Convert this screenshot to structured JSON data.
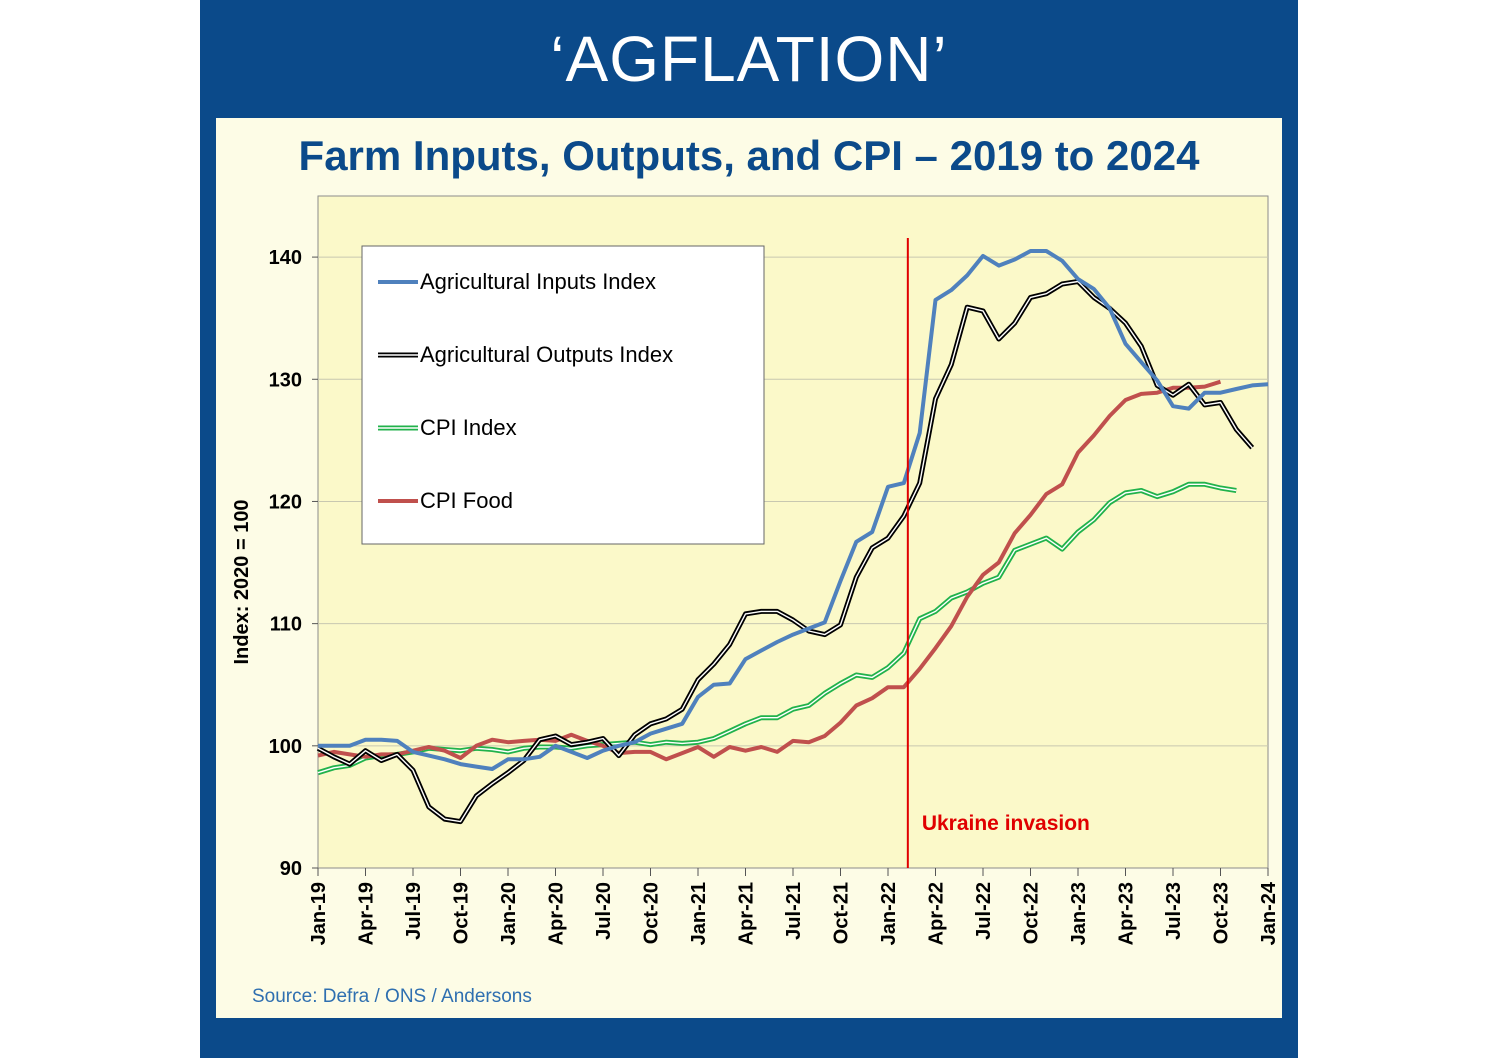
{
  "header": {
    "title": "‘AGFLATION’"
  },
  "subtitle": "Farm Inputs, Outputs, and CPI – 2019 to 2024",
  "source": "Source: Defra / ONS / Andersons",
  "colors": {
    "frame": "#0b4a8a",
    "panel": "#fdfce6",
    "plot_area": "#fbf9c9",
    "inputs": "#4f81bd",
    "outputs": "#000000",
    "cpi": "#21b24b",
    "cpi_food": "#c0504d",
    "invasion": "#e00000"
  },
  "chart_data": {
    "type": "line",
    "ylabel": "Index: 2020 = 100",
    "xlabel": "",
    "ylim": [
      90,
      145
    ],
    "yticks": [
      90,
      100,
      110,
      120,
      130,
      140
    ],
    "xlim": [
      "2019-01",
      "2024-01"
    ],
    "xticks": [
      "Jan-19",
      "Apr-19",
      "Jul-19",
      "Oct-19",
      "Jan-20",
      "Apr-20",
      "Jul-20",
      "Oct-20",
      "Jan-21",
      "Apr-21",
      "Jul-21",
      "Oct-21",
      "Jan-22",
      "Apr-22",
      "Jul-22",
      "Oct-22",
      "Jan-23",
      "Apr-23",
      "Jul-23",
      "Oct-23",
      "Jan-24"
    ],
    "grid": "horizontal",
    "legend_position": "top-left",
    "start_month": "2019-01",
    "series": [
      {
        "name": "Agricultural Inputs Index",
        "color": "#4f81bd",
        "values": [
          100.0,
          100.0,
          100.0,
          100.5,
          100.5,
          100.4,
          99.5,
          99.2,
          98.9,
          98.5,
          98.3,
          98.1,
          98.9,
          98.9,
          99.1,
          100.0,
          99.5,
          99.0,
          99.6,
          100.0,
          100.3,
          101.0,
          101.4,
          101.8,
          104.0,
          105.0,
          105.1,
          107.1,
          107.8,
          108.5,
          109.1,
          109.6,
          110.1,
          113.5,
          116.7,
          117.5,
          121.2,
          121.5,
          125.6,
          136.5,
          137.3,
          138.5,
          140.1,
          139.3,
          139.8,
          140.5,
          140.5,
          139.7,
          138.2,
          137.4,
          135.8,
          132.9,
          131.4,
          129.9,
          127.8,
          127.6,
          128.9,
          128.9,
          129.2,
          129.5,
          129.6
        ]
      },
      {
        "name": "Agricultural Outputs Index",
        "color": "#000000",
        "values": [
          99.8,
          99.1,
          98.5,
          99.6,
          98.8,
          99.3,
          98.0,
          95.0,
          94.0,
          93.8,
          95.9,
          96.9,
          97.8,
          98.8,
          100.5,
          100.8,
          100.1,
          100.3,
          100.6,
          99.2,
          100.9,
          101.8,
          102.2,
          103.0,
          105.4,
          106.7,
          108.3,
          110.8,
          111.0,
          111.0,
          110.3,
          109.4,
          109.1,
          109.9,
          113.8,
          116.2,
          117.0,
          118.8,
          121.5,
          128.4,
          131.2,
          135.9,
          135.6,
          133.3,
          134.6,
          136.7,
          137.0,
          137.8,
          138.0,
          136.7,
          135.8,
          134.6,
          132.7,
          129.5,
          128.7,
          129.6,
          127.9,
          128.1,
          125.9,
          124.4
        ]
      },
      {
        "name": "CPI Index",
        "color": "#21b24b",
        "values": [
          97.8,
          98.2,
          98.4,
          99.0,
          99.2,
          99.3,
          99.5,
          99.8,
          99.7,
          99.6,
          99.8,
          99.7,
          99.5,
          99.8,
          99.9,
          99.9,
          99.8,
          100.0,
          100.1,
          100.2,
          100.3,
          100.1,
          100.3,
          100.2,
          100.3,
          100.6,
          101.2,
          101.8,
          102.3,
          102.3,
          103.0,
          103.3,
          104.3,
          105.1,
          105.8,
          105.6,
          106.4,
          107.6,
          110.4,
          111.0,
          112.1,
          112.6,
          113.3,
          113.8,
          116.0,
          116.5,
          117.0,
          116.1,
          117.5,
          118.5,
          119.9,
          120.7,
          120.9,
          120.4,
          120.8,
          121.4,
          121.4,
          121.1,
          120.9
        ]
      },
      {
        "name": "CPI Food",
        "color": "#c0504d",
        "values": [
          99.2,
          99.5,
          99.3,
          99.1,
          99.3,
          99.3,
          99.6,
          99.9,
          99.6,
          99.0,
          100.0,
          100.5,
          100.3,
          100.4,
          100.5,
          100.4,
          100.9,
          100.4,
          100.0,
          99.4,
          99.5,
          99.5,
          98.9,
          99.4,
          99.9,
          99.1,
          99.9,
          99.6,
          99.9,
          99.5,
          100.4,
          100.3,
          100.8,
          101.9,
          103.3,
          103.9,
          104.8,
          104.8,
          106.3,
          108.0,
          109.8,
          112.2,
          114.0,
          115.0,
          117.4,
          118.9,
          120.6,
          121.4,
          124.0,
          125.4,
          127.0,
          128.3,
          128.8,
          128.9,
          129.3,
          129.3,
          129.4,
          129.8
        ]
      }
    ],
    "annotations": [
      {
        "text": "Ukraine invasion",
        "x": "2022-02",
        "style": "vertical-line"
      }
    ]
  }
}
